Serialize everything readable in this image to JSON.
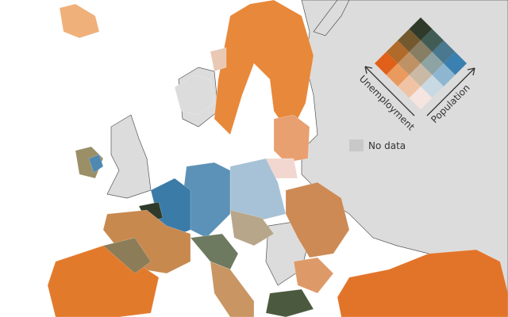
{
  "legend": {
    "x_label": "Unemployment",
    "y_label": "Population",
    "no_data": "No data"
  }
}
